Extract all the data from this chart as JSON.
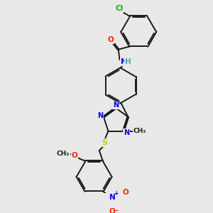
{
  "background_color": "#e8e8e8",
  "bond_color": "#1a1a1a",
  "atom_colors": {
    "Cl": "#00bb00",
    "O": "#ff2200",
    "N": "#0000ee",
    "S": "#cccc00",
    "H": "#44aaaa",
    "C": "#1a1a1a"
  },
  "figsize": [
    3.0,
    3.0
  ],
  "dpi": 100
}
